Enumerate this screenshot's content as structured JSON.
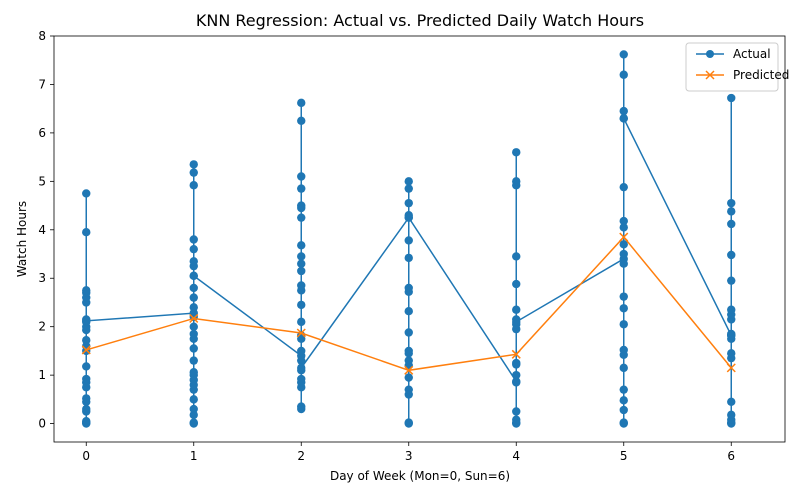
{
  "chart_data": {
    "type": "line",
    "title": "KNN Regression: Actual vs. Predicted Daily Watch Hours",
    "xlabel": "Day of Week (Mon=0, Sun=6)",
    "ylabel": "Watch Hours",
    "xlim": [
      -0.3,
      6.5
    ],
    "ylim": [
      -0.38,
      8.0
    ],
    "x_ticks": [
      "0",
      "1",
      "2",
      "3",
      "4",
      "5",
      "6"
    ],
    "y_ticks": [
      "0",
      "1",
      "2",
      "3",
      "4",
      "5",
      "6",
      "7",
      "8"
    ],
    "legend_position": "top-right",
    "grid": false,
    "series": [
      {
        "name": "Actual",
        "color": "#1f77b4",
        "marker": "circle",
        "points": [
          [
            0,
            0.0
          ],
          [
            0,
            0.02
          ],
          [
            0,
            0.05
          ],
          [
            0,
            0.25
          ],
          [
            0,
            0.3
          ],
          [
            0,
            0.45
          ],
          [
            0,
            0.52
          ],
          [
            0,
            0.75
          ],
          [
            0,
            0.85
          ],
          [
            0,
            0.92
          ],
          [
            0,
            1.18
          ],
          [
            0,
            1.5
          ],
          [
            0,
            1.6
          ],
          [
            0,
            1.72
          ],
          [
            0,
            1.93
          ],
          [
            0,
            2.0
          ],
          [
            0,
            2.1
          ],
          [
            0,
            2.15
          ],
          [
            0,
            2.5
          ],
          [
            0,
            2.6
          ],
          [
            0,
            2.7
          ],
          [
            0,
            2.75
          ],
          [
            0,
            3.95
          ],
          [
            0,
            4.75
          ],
          [
            0,
            2.12
          ],
          [
            1,
            2.28
          ],
          [
            1,
            0.0
          ],
          [
            1,
            0.02
          ],
          [
            1,
            0.18
          ],
          [
            1,
            0.3
          ],
          [
            1,
            0.5
          ],
          [
            1,
            0.7
          ],
          [
            1,
            0.8
          ],
          [
            1,
            0.9
          ],
          [
            1,
            1.0
          ],
          [
            1,
            1.06
          ],
          [
            1,
            1.3
          ],
          [
            1,
            1.55
          ],
          [
            1,
            1.75
          ],
          [
            1,
            1.85
          ],
          [
            1,
            2.0
          ],
          [
            1,
            2.2
          ],
          [
            1,
            2.4
          ],
          [
            1,
            2.6
          ],
          [
            1,
            2.8
          ],
          [
            1,
            3.05
          ],
          [
            1,
            3.25
          ],
          [
            1,
            3.35
          ],
          [
            1,
            3.6
          ],
          [
            1,
            3.8
          ],
          [
            1,
            4.92
          ],
          [
            1,
            5.18
          ],
          [
            1,
            5.35
          ],
          [
            1,
            3.05
          ],
          [
            2,
            1.4
          ],
          [
            2,
            0.3
          ],
          [
            2,
            0.35
          ],
          [
            2,
            0.75
          ],
          [
            2,
            0.85
          ],
          [
            2,
            0.92
          ],
          [
            2,
            1.1
          ],
          [
            2,
            1.3
          ],
          [
            2,
            1.5
          ],
          [
            2,
            1.75
          ],
          [
            2,
            1.82
          ],
          [
            2,
            2.1
          ],
          [
            2,
            2.45
          ],
          [
            2,
            2.75
          ],
          [
            2,
            2.85
          ],
          [
            2,
            3.15
          ],
          [
            2,
            3.3
          ],
          [
            2,
            3.45
          ],
          [
            2,
            3.68
          ],
          [
            2,
            4.25
          ],
          [
            2,
            4.45
          ],
          [
            2,
            4.5
          ],
          [
            2,
            4.85
          ],
          [
            2,
            5.1
          ],
          [
            2,
            6.25
          ],
          [
            2,
            6.62
          ],
          [
            2,
            1.15
          ],
          [
            3,
            4.25
          ],
          [
            3,
            0.0
          ],
          [
            3,
            0.02
          ],
          [
            3,
            0.6
          ],
          [
            3,
            0.7
          ],
          [
            3,
            0.95
          ],
          [
            3,
            1.2
          ],
          [
            3,
            1.3
          ],
          [
            3,
            1.45
          ],
          [
            3,
            1.5
          ],
          [
            3,
            1.88
          ],
          [
            3,
            2.32
          ],
          [
            3,
            2.72
          ],
          [
            3,
            2.8
          ],
          [
            3,
            3.42
          ],
          [
            3,
            3.78
          ],
          [
            3,
            4.3
          ],
          [
            3,
            4.55
          ],
          [
            3,
            4.85
          ],
          [
            3,
            5.0
          ],
          [
            3,
            4.25
          ],
          [
            4,
            0.87
          ],
          [
            4,
            0.0
          ],
          [
            4,
            0.02
          ],
          [
            4,
            0.08
          ],
          [
            4,
            0.25
          ],
          [
            4,
            0.85
          ],
          [
            4,
            1.0
          ],
          [
            4,
            1.22
          ],
          [
            4,
            1.25
          ],
          [
            4,
            1.95
          ],
          [
            4,
            2.05
          ],
          [
            4,
            2.15
          ],
          [
            4,
            2.35
          ],
          [
            4,
            2.88
          ],
          [
            4,
            3.45
          ],
          [
            4,
            4.92
          ],
          [
            4,
            5.0
          ],
          [
            4,
            5.6
          ],
          [
            4,
            2.1
          ],
          [
            5,
            3.4
          ],
          [
            5,
            0.0
          ],
          [
            5,
            0.02
          ],
          [
            5,
            0.28
          ],
          [
            5,
            0.48
          ],
          [
            5,
            0.7
          ],
          [
            5,
            1.15
          ],
          [
            5,
            1.42
          ],
          [
            5,
            1.52
          ],
          [
            5,
            2.05
          ],
          [
            5,
            2.38
          ],
          [
            5,
            2.62
          ],
          [
            5,
            3.3
          ],
          [
            5,
            3.5
          ],
          [
            5,
            3.7
          ],
          [
            5,
            4.05
          ],
          [
            5,
            4.18
          ],
          [
            5,
            4.88
          ],
          [
            5,
            6.3
          ],
          [
            5,
            6.45
          ],
          [
            5,
            7.2
          ],
          [
            5,
            7.62
          ],
          [
            5,
            6.3
          ],
          [
            6,
            1.82
          ],
          [
            6,
            0.0
          ],
          [
            6,
            0.02
          ],
          [
            6,
            0.08
          ],
          [
            6,
            0.18
          ],
          [
            6,
            0.45
          ],
          [
            6,
            1.35
          ],
          [
            6,
            1.45
          ],
          [
            6,
            1.75
          ],
          [
            6,
            1.85
          ],
          [
            6,
            2.15
          ],
          [
            6,
            2.25
          ],
          [
            6,
            2.35
          ],
          [
            6,
            2.95
          ],
          [
            6,
            3.48
          ],
          [
            6,
            4.12
          ],
          [
            6,
            4.38
          ],
          [
            6,
            4.55
          ],
          [
            6,
            6.72
          ],
          [
            6,
            1.82
          ]
        ]
      },
      {
        "name": "Predicted",
        "color": "#ff7f0e",
        "marker": "x",
        "points": [
          [
            0,
            1.52
          ],
          [
            1,
            2.17
          ],
          [
            2,
            1.87
          ],
          [
            3,
            1.1
          ],
          [
            4,
            1.43
          ],
          [
            5,
            3.85
          ],
          [
            6,
            1.15
          ]
        ]
      }
    ]
  }
}
